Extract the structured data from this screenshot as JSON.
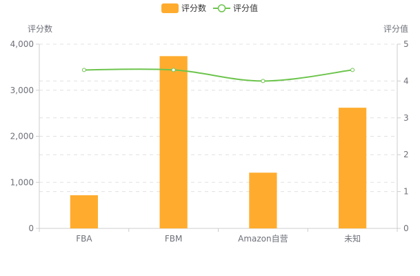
{
  "chart_data": {
    "type": "bar",
    "categories": [
      "FBA",
      "FBM",
      "Amazon自营",
      "未知"
    ],
    "series": [
      {
        "name": "评分数",
        "type": "bar",
        "axis": "left",
        "values": [
          720,
          3740,
          1210,
          2620
        ]
      },
      {
        "name": "评分值",
        "type": "line",
        "axis": "right",
        "values": [
          4.3,
          4.3,
          4.0,
          4.3
        ]
      }
    ],
    "ylabel_left": "评分数",
    "ylabel_right": "评分值",
    "ylim_left": [
      0,
      4000
    ],
    "ylim_right": [
      0,
      5
    ],
    "yticks_left": [
      "0",
      "1,000",
      "2,000",
      "3,000",
      "4,000"
    ],
    "yticks_right": [
      "0",
      "1",
      "2",
      "3",
      "4",
      "5"
    ],
    "legend_position": "top-center",
    "grid": true,
    "colors": {
      "bar": "#ffac2e",
      "line": "#6cc44c",
      "grid": "#e0e0e0",
      "axis": "#cccccc",
      "text": "#6e7079"
    }
  }
}
